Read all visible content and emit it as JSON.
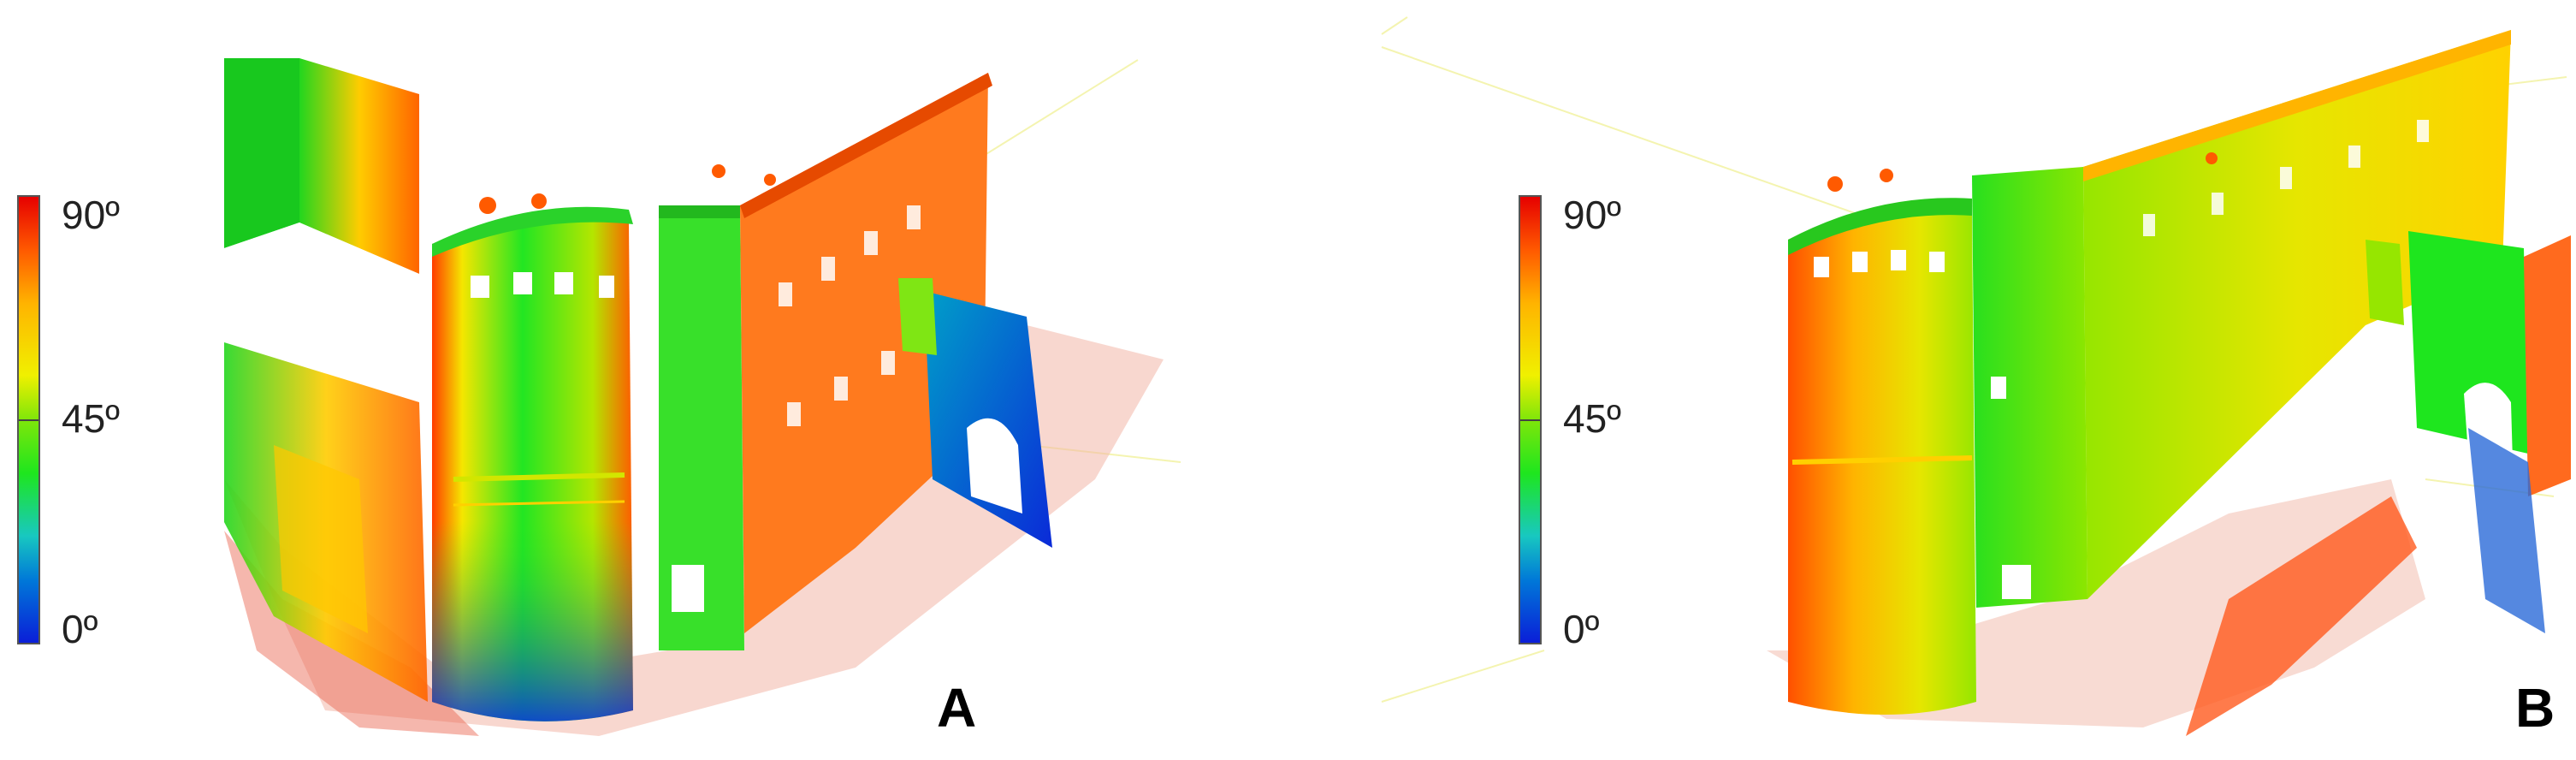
{
  "panels": [
    {
      "letter": "A",
      "colorbar": {
        "label_top": "90º",
        "label_mid": "45º",
        "label_bottom": "0º"
      }
    },
    {
      "letter": "B",
      "colorbar": {
        "label_top": "90º",
        "label_mid": "45º",
        "label_bottom": "0º"
      }
    }
  ],
  "colors": {
    "scale_0": "#0a1ed8",
    "scale_45": "#1ee61e",
    "scale_90": "#e60000"
  }
}
